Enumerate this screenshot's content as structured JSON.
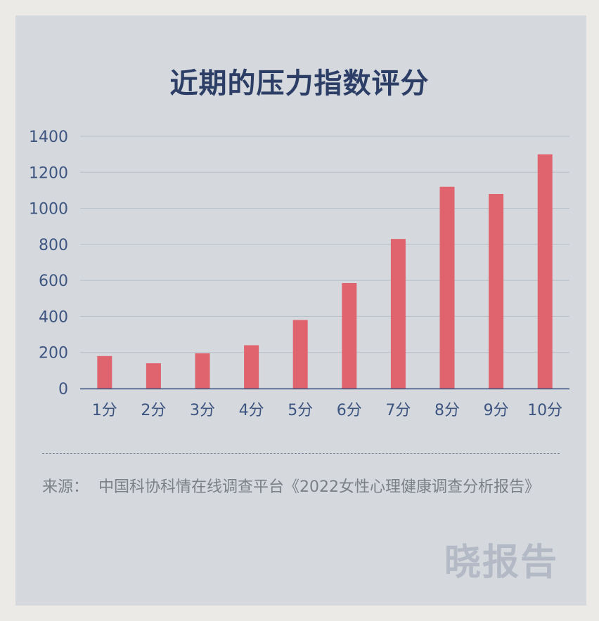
{
  "chart_data": {
    "type": "bar",
    "title": "近期的压力指数评分",
    "categories": [
      "1分",
      "2分",
      "3分",
      "4分",
      "5分",
      "6分",
      "7分",
      "8分",
      "9分",
      "10分"
    ],
    "values": [
      180,
      140,
      195,
      240,
      380,
      585,
      830,
      1120,
      1080,
      1300
    ],
    "ylim": [
      0,
      1400
    ],
    "yticks": [
      0,
      200,
      400,
      600,
      800,
      1000,
      1200,
      1400
    ],
    "grid": true,
    "bar_color": "#e0646e",
    "xlabel": "",
    "ylabel": ""
  },
  "source": {
    "label": "来源：",
    "text": "中国科协科情在线调查平台《2022女性心理健康调查分析报告》"
  },
  "brand": "晓报告",
  "colors": {
    "title": "#2c3e66",
    "axis": "#3d5580",
    "grid": "#b8bec8",
    "background": "#d5d9de"
  }
}
